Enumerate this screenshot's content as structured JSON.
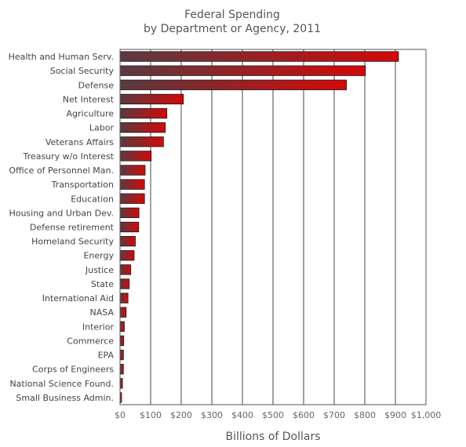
{
  "chart_data": {
    "type": "bar",
    "orientation": "horizontal",
    "title": "Federal Spending",
    "subtitle": "by Department or Agency, 2011",
    "xlabel": "Billions of Dollars",
    "ylabel": "",
    "xlim": [
      0,
      1000
    ],
    "tick_values": [
      0,
      100,
      200,
      300,
      400,
      500,
      600,
      700,
      800,
      900,
      1000
    ],
    "tick_labels": [
      "$0",
      "$100",
      "$200",
      "$300",
      "$400",
      "$500",
      "$600",
      "$700",
      "$800",
      "$900",
      "$1,000"
    ],
    "grid": true,
    "legend": "none",
    "colors": {
      "bar_start": "#5a3a40",
      "bar_end": "#d40808",
      "grid": "#444444",
      "frame": "#555555"
    },
    "categories": [
      "Health and Human Serv.",
      "Social Security",
      "Defense",
      "Net Interest",
      "Agriculture",
      "Labor",
      "Veterans Affairs",
      "Treasury w/o Interest",
      "Office of Personnel Man.",
      "Transportation",
      "Education",
      "Housing and Urban Dev.",
      "Defense retirement",
      "Homeland Security",
      "Energy",
      "Justice",
      "State",
      "International Aid",
      "NASA",
      "Interior",
      "Commerce",
      "EPA",
      "Corps of Engineers",
      "National Science Found.",
      "Small Business Admin."
    ],
    "values": [
      910,
      802,
      740,
      207,
      153,
      148,
      142,
      102,
      82,
      80,
      80,
      62,
      61,
      50,
      46,
      35,
      30,
      26,
      20,
      14,
      12,
      11,
      11,
      8,
      5
    ]
  }
}
